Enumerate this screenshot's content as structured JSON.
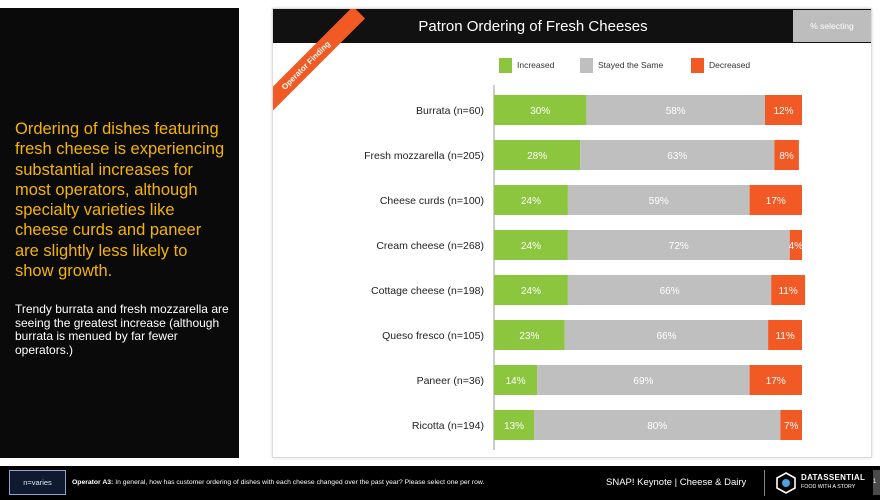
{
  "left_panel": {
    "headline": "Ordering of dishes featuring fresh cheese is experiencing substantial increases for most operators, although specialty varieties like cheese curds and paneer are slightly less likely to show growth.",
    "subtext": "Trendy burrata and fresh mozzarella are seeing the greatest increase (although burrata is menued by far fewer operators.)"
  },
  "card": {
    "percent_tag": "% selecting",
    "ribbon": "Operator Finding"
  },
  "chart_data": {
    "type": "bar",
    "orientation": "horizontal",
    "stacked": true,
    "title": "Patron Ordering of Fresh Cheeses",
    "value_unit": "%",
    "categories": [
      "Burrata (n=60)",
      "Fresh mozzarella (n=205)",
      "Cheese curds (n=100)",
      "Cream cheese (n=268)",
      "Cottage cheese (n=198)",
      "Queso fresco (n=105)",
      "Paneer (n=36)",
      "Ricotta (n=194)"
    ],
    "series": [
      {
        "name": "Increased",
        "color": "#8cc63f",
        "values": [
          30,
          28,
          24,
          24,
          24,
          23,
          14,
          13
        ]
      },
      {
        "name": "Stayed the Same",
        "color": "#bfbfbf",
        "values": [
          58,
          63,
          59,
          72,
          66,
          66,
          69,
          80
        ]
      },
      {
        "name": "Decreased",
        "color": "#f15a24",
        "values": [
          12,
          8,
          17,
          4,
          11,
          11,
          17,
          7
        ]
      }
    ],
    "legend_position": "top",
    "grid": false
  },
  "footer": {
    "n_label": "n=varies",
    "question_label": "Operator A3:",
    "question_text": "In general, how has customer ordering of dishes with each cheese changed over the past year? Please select one per row.",
    "report_title": "SNAP! Keynote | Cheese & Dairy",
    "brand_name": "DATASSENTIAL",
    "brand_tagline": "FOOD WITH A STORY",
    "page_number": "1"
  }
}
